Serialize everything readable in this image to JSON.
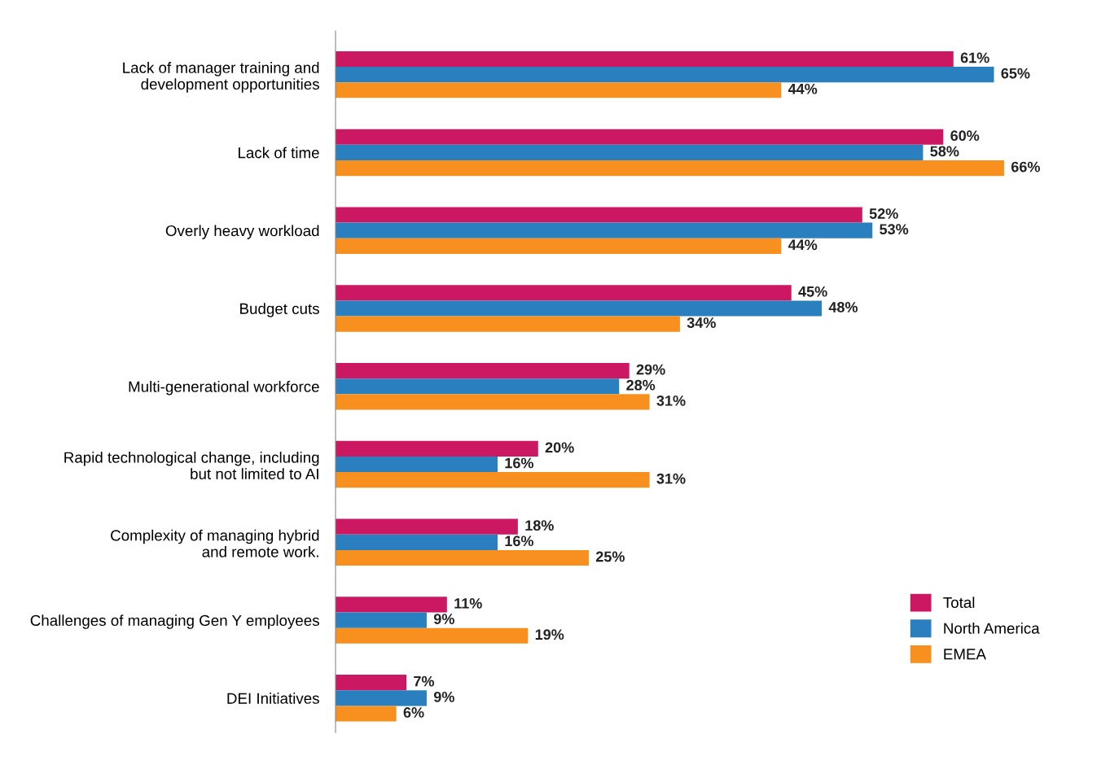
{
  "chart_data": {
    "type": "bar",
    "orientation": "horizontal",
    "categories": [
      "Lack of manager training and\ndevelopment opportunities",
      "Lack of time",
      "Overly heavy workload",
      "Budget cuts",
      "Multi-generational workforce",
      "Rapid technological change, including\nbut not limited to AI",
      "Complexity of managing hybrid\nand remote work.",
      "Challenges of managing Gen Y employees",
      "DEI Initiatives"
    ],
    "series": [
      {
        "name": "Total",
        "color": "#cc1762",
        "values": [
          61,
          60,
          52,
          45,
          29,
          20,
          18,
          11,
          7
        ],
        "value_labels": [
          "61%",
          "60%",
          "52%",
          "45%",
          "29%",
          "20%",
          "18%",
          "11%",
          "7%"
        ]
      },
      {
        "name": "North America",
        "color": "#2a7fbf",
        "values": [
          65,
          58,
          53,
          48,
          28,
          16,
          16,
          9,
          9
        ],
        "value_labels": [
          "65%",
          "58%",
          "53%",
          "48%",
          "28%",
          "16%",
          "16%",
          "9%",
          "9%"
        ]
      },
      {
        "name": "EMEA",
        "color": "#f7901e",
        "values": [
          44,
          66,
          44,
          34,
          31,
          31,
          25,
          19,
          6
        ],
        "value_labels": [
          "44%",
          "66%",
          "44%",
          "34%",
          "31%",
          "31%",
          "25%",
          "19%",
          "6%"
        ]
      }
    ],
    "tick_labels": "y",
    "grid": false,
    "legend": "bottom right"
  }
}
